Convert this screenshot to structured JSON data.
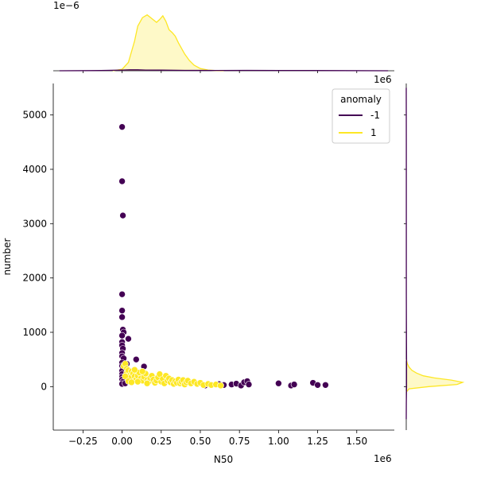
{
  "chart_data": {
    "type": "scatter",
    "title": "",
    "xlabel": "N50",
    "ylabel": "number",
    "x_offset_label": "1e6",
    "x_offset_label_top": "1e6",
    "top_marginal_offset_label": "1e−6",
    "xlim": [
      -0.44,
      1.74
    ],
    "ylim": [
      -800,
      5580
    ],
    "xticks": [
      -0.25,
      0.0,
      0.25,
      0.5,
      0.75,
      1.0,
      1.25,
      1.5
    ],
    "xtick_labels": [
      "−0.25",
      "0.00",
      "0.25",
      "0.50",
      "0.75",
      "1.00",
      "1.25",
      "1.50"
    ],
    "yticks": [
      0,
      1000,
      2000,
      3000,
      4000,
      5000
    ],
    "ytick_labels": [
      "0",
      "1000",
      "2000",
      "3000",
      "4000",
      "5000"
    ],
    "grid": false,
    "legend": {
      "title": "anomaly",
      "placement": "top-right",
      "entries": [
        {
          "label": "-1",
          "color": "#440154"
        },
        {
          "label": "1",
          "color": "#fde725"
        }
      ]
    },
    "series": [
      {
        "name": "-1",
        "color": "#440154",
        "points": [
          [
            0.0,
            4780
          ],
          [
            0.0,
            3780
          ],
          [
            0.005,
            3150
          ],
          [
            0.0,
            1700
          ],
          [
            0.0,
            1400
          ],
          [
            0.0,
            1280
          ],
          [
            0.005,
            1050
          ],
          [
            0.01,
            1000
          ],
          [
            0.0,
            940
          ],
          [
            0.04,
            880
          ],
          [
            0.0,
            820
          ],
          [
            0.0,
            760
          ],
          [
            0.005,
            700
          ],
          [
            0.0,
            620
          ],
          [
            0.0,
            560
          ],
          [
            0.01,
            520
          ],
          [
            0.09,
            500
          ],
          [
            0.0,
            440
          ],
          [
            0.03,
            420
          ],
          [
            0.0,
            380
          ],
          [
            0.005,
            330
          ],
          [
            0.0,
            290
          ],
          [
            0.14,
            370
          ],
          [
            0.0,
            230
          ],
          [
            0.0,
            180
          ],
          [
            0.0,
            130
          ],
          [
            0.005,
            90
          ],
          [
            0.0,
            50
          ],
          [
            0.02,
            60
          ],
          [
            0.53,
            20
          ],
          [
            0.62,
            45
          ],
          [
            0.65,
            30
          ],
          [
            0.7,
            40
          ],
          [
            0.73,
            55
          ],
          [
            0.76,
            20
          ],
          [
            0.78,
            80
          ],
          [
            0.8,
            100
          ],
          [
            0.81,
            40
          ],
          [
            1.0,
            60
          ],
          [
            1.08,
            20
          ],
          [
            1.1,
            40
          ],
          [
            1.22,
            70
          ],
          [
            1.25,
            30
          ],
          [
            1.3,
            30
          ]
        ]
      },
      {
        "name": "1",
        "color": "#fde725",
        "points": [
          [
            0.01,
            380
          ],
          [
            0.02,
            420
          ],
          [
            0.03,
            330
          ],
          [
            0.03,
            250
          ],
          [
            0.04,
            300
          ],
          [
            0.05,
            210
          ],
          [
            0.05,
            160
          ],
          [
            0.06,
            280
          ],
          [
            0.07,
            240
          ],
          [
            0.08,
            190
          ],
          [
            0.09,
            130
          ],
          [
            0.1,
            200
          ],
          [
            0.11,
            260
          ],
          [
            0.12,
            150
          ],
          [
            0.13,
            110
          ],
          [
            0.14,
            180
          ],
          [
            0.15,
            240
          ],
          [
            0.16,
            120
          ],
          [
            0.17,
            90
          ],
          [
            0.18,
            160
          ],
          [
            0.19,
            200
          ],
          [
            0.2,
            130
          ],
          [
            0.21,
            70
          ],
          [
            0.22,
            110
          ],
          [
            0.23,
            170
          ],
          [
            0.24,
            230
          ],
          [
            0.25,
            90
          ],
          [
            0.26,
            140
          ],
          [
            0.27,
            60
          ],
          [
            0.28,
            200
          ],
          [
            0.29,
            110
          ],
          [
            0.3,
            150
          ],
          [
            0.31,
            80
          ],
          [
            0.32,
            120
          ],
          [
            0.33,
            50
          ],
          [
            0.34,
            100
          ],
          [
            0.35,
            70
          ],
          [
            0.36,
            130
          ],
          [
            0.37,
            60
          ],
          [
            0.38,
            90
          ],
          [
            0.39,
            120
          ],
          [
            0.4,
            40
          ],
          [
            0.41,
            80
          ],
          [
            0.42,
            110
          ],
          [
            0.44,
            60
          ],
          [
            0.46,
            90
          ],
          [
            0.48,
            50
          ],
          [
            0.5,
            70
          ],
          [
            0.52,
            30
          ],
          [
            0.55,
            50
          ],
          [
            0.57,
            30
          ],
          [
            0.6,
            40
          ],
          [
            0.63,
            20
          ],
          [
            0.02,
            190
          ],
          [
            0.04,
            100
          ],
          [
            0.06,
            80
          ],
          [
            0.08,
            310
          ],
          [
            0.1,
            90
          ],
          [
            0.13,
            280
          ],
          [
            0.16,
            60
          ]
        ]
      }
    ],
    "top_marginal": {
      "type": "area",
      "series": [
        {
          "name": "1",
          "color": "#fde725",
          "x": [
            -0.06,
            0.0,
            0.04,
            0.08,
            0.1,
            0.13,
            0.16,
            0.19,
            0.22,
            0.24,
            0.26,
            0.28,
            0.3,
            0.32,
            0.34,
            0.36,
            0.38,
            0.4,
            0.43,
            0.46,
            0.5,
            0.55,
            0.6,
            0.65
          ],
          "y": [
            0.0,
            0.08,
            0.45,
            1.6,
            2.4,
            2.85,
            3.0,
            2.8,
            2.6,
            2.75,
            2.95,
            2.65,
            2.2,
            2.05,
            1.85,
            1.5,
            1.2,
            0.9,
            0.55,
            0.3,
            0.12,
            0.04,
            0.01,
            0.0
          ]
        },
        {
          "name": "-1",
          "color": "#440154",
          "x": [
            -0.4,
            -0.2,
            -0.1,
            0.0,
            0.05,
            0.1,
            0.15,
            0.25,
            0.4,
            0.6,
            0.8,
            1.0,
            1.2,
            1.4,
            1.7
          ],
          "y": [
            0.0,
            0.01,
            0.02,
            0.04,
            0.05,
            0.05,
            0.04,
            0.035,
            0.02,
            0.015,
            0.02,
            0.015,
            0.015,
            0.008,
            0.0
          ]
        }
      ]
    },
    "right_marginal": {
      "type": "area",
      "series": [
        {
          "name": "1",
          "color": "#fde725",
          "y": [
            -100,
            -40,
            0,
            40,
            80,
            120,
            160,
            200,
            250,
            300,
            360,
            420,
            500
          ],
          "x": [
            0.0,
            0.05,
            0.4,
            0.9,
            1.0,
            0.8,
            0.5,
            0.3,
            0.18,
            0.1,
            0.05,
            0.02,
            0.0
          ]
        },
        {
          "name": "-1",
          "color": "#440154",
          "y": [
            -600,
            -300,
            0,
            200,
            500,
            800,
            1200,
            1700,
            2500,
            3500,
            4500,
            5500
          ],
          "x": [
            0.0,
            0.002,
            0.006,
            0.006,
            0.005,
            0.004,
            0.003,
            0.002,
            0.0015,
            0.001,
            0.0008,
            0.0
          ]
        }
      ]
    }
  }
}
